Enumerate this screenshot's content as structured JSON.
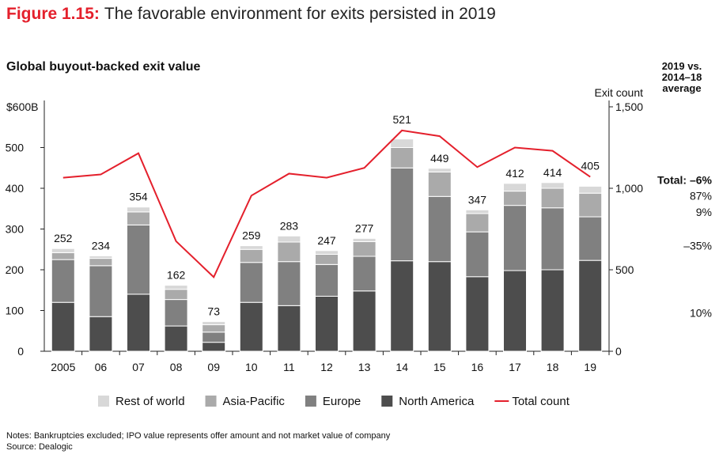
{
  "figure": {
    "number": "Figure 1.15:",
    "title": "The favorable environment for exits persisted in 2019"
  },
  "subtitle": "Global buyout-backed exit value",
  "comparison": {
    "header_lines": [
      "2019 vs.",
      "2014–18",
      "average"
    ],
    "rows": [
      {
        "label": "Total: –6%",
        "bold": true
      },
      {
        "label": "87%",
        "bold": false
      },
      {
        "label": "9%",
        "bold": false
      },
      {
        "label": "–35%",
        "bold": false
      },
      {
        "label": "10%",
        "bold": false
      }
    ]
  },
  "notes": [
    "Notes: Bankruptcies excluded; IPO value represents offer amount and not market value of company",
    "Source: Dealogic"
  ],
  "colors": {
    "north_america": "#4d4d4d",
    "europe": "#808080",
    "asia_pacific": "#aaaaaa",
    "rest_of_world": "#d8d8d8",
    "total_count": "#e4202c",
    "axis": "#222222"
  },
  "chart_data": {
    "type": "bar",
    "stacked": true,
    "categories": [
      "2005",
      "06",
      "07",
      "08",
      "09",
      "10",
      "11",
      "12",
      "13",
      "14",
      "15",
      "16",
      "17",
      "18",
      "19"
    ],
    "series": [
      {
        "name": "North America",
        "values": [
          120,
          85,
          140,
          62,
          22,
          120,
          112,
          135,
          148,
          222,
          220,
          183,
          198,
          200,
          223
        ]
      },
      {
        "name": "Europe",
        "values": [
          105,
          125,
          170,
          65,
          25,
          98,
          108,
          78,
          85,
          228,
          160,
          110,
          160,
          152,
          107
        ]
      },
      {
        "name": "Asia-Pacific",
        "values": [
          17,
          18,
          32,
          25,
          18,
          32,
          48,
          25,
          36,
          50,
          60,
          45,
          35,
          48,
          58
        ]
      },
      {
        "name": "Rest of world",
        "values": [
          10,
          6,
          12,
          10,
          8,
          9,
          15,
          9,
          8,
          21,
          9,
          9,
          19,
          14,
          17
        ]
      }
    ],
    "totals": [
      252,
      234,
      354,
      162,
      73,
      259,
      283,
      247,
      277,
      521,
      449,
      347,
      412,
      414,
      405
    ],
    "line": {
      "name": "Total count",
      "values": [
        1065,
        1085,
        1215,
        675,
        455,
        955,
        1090,
        1065,
        1125,
        1355,
        1320,
        1130,
        1250,
        1230,
        1070
      ]
    },
    "yleft": {
      "label": "$600B",
      "ticks": [
        "0",
        "100",
        "200",
        "300",
        "400",
        "500"
      ],
      "lim": [
        0,
        600
      ]
    },
    "yright": {
      "title": "Exit count",
      "ticks": [
        "0",
        "500",
        "1,000",
        "1,500"
      ],
      "lim": [
        0,
        1500
      ]
    },
    "legend_position": "bottom",
    "legend": [
      {
        "label": "Rest of world",
        "color": "#d8d8d8"
      },
      {
        "label": "Asia-Pacific",
        "color": "#aaaaaa"
      },
      {
        "label": "Europe",
        "color": "#808080"
      },
      {
        "label": "North America",
        "color": "#4d4d4d"
      },
      {
        "label": "Total count",
        "color": "#e4202c",
        "line": true
      }
    ]
  }
}
